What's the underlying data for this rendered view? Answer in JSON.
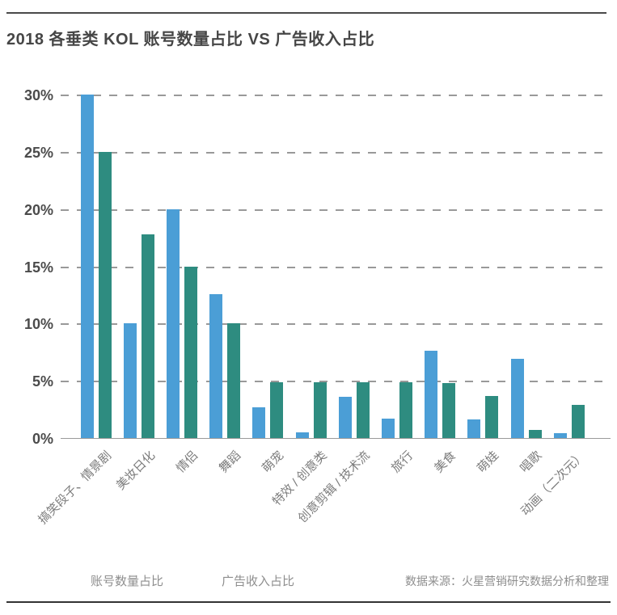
{
  "title": "2018 各垂类 KOL 账号数量占比 VS 广告收入占比",
  "source_note": "数据来源：火星营销研究数据分析和整理",
  "colors": {
    "series_accounts": "#4b9ed6",
    "series_ad_revenue": "#2e8c80",
    "grid": "#999999",
    "title_text": "#464646"
  },
  "chart_data": {
    "type": "bar",
    "title": "2018 各垂类 KOL 账号数量占比 VS 广告收入占比",
    "categories": [
      "搞笑段子、情景剧",
      "美妆日化",
      "情侣",
      "舞蹈",
      "萌宠",
      "特效 / 创意类",
      "创意剪辑 / 技术流",
      "旅行",
      "美食",
      "萌娃",
      "唱歌",
      "动画（二次元）"
    ],
    "series": [
      {
        "name": "账号数量占比",
        "color": "#4b9ed6",
        "values": [
          30,
          10,
          20,
          12.6,
          2.7,
          0.5,
          3.6,
          1.7,
          7.6,
          1.6,
          6.9,
          0.4
        ]
      },
      {
        "name": "广告收入占比",
        "color": "#2e8c80",
        "values": [
          25,
          17.8,
          15,
          10,
          4.9,
          4.9,
          4.9,
          4.9,
          4.8,
          3.7,
          0.7,
          2.9
        ]
      }
    ],
    "ylabel": "",
    "xlabel": "",
    "ylim": [
      0,
      30
    ],
    "ytick_values": [
      0,
      5,
      10,
      15,
      20,
      25,
      30
    ],
    "ytick_labels": [
      "0%",
      "5%",
      "10%",
      "15%",
      "20%",
      "25%",
      "30%"
    ],
    "grid": "horizontal-dashed",
    "legend_position": "bottom-left"
  },
  "legend_labels": [
    "账号数量占比",
    "广告收入占比"
  ]
}
